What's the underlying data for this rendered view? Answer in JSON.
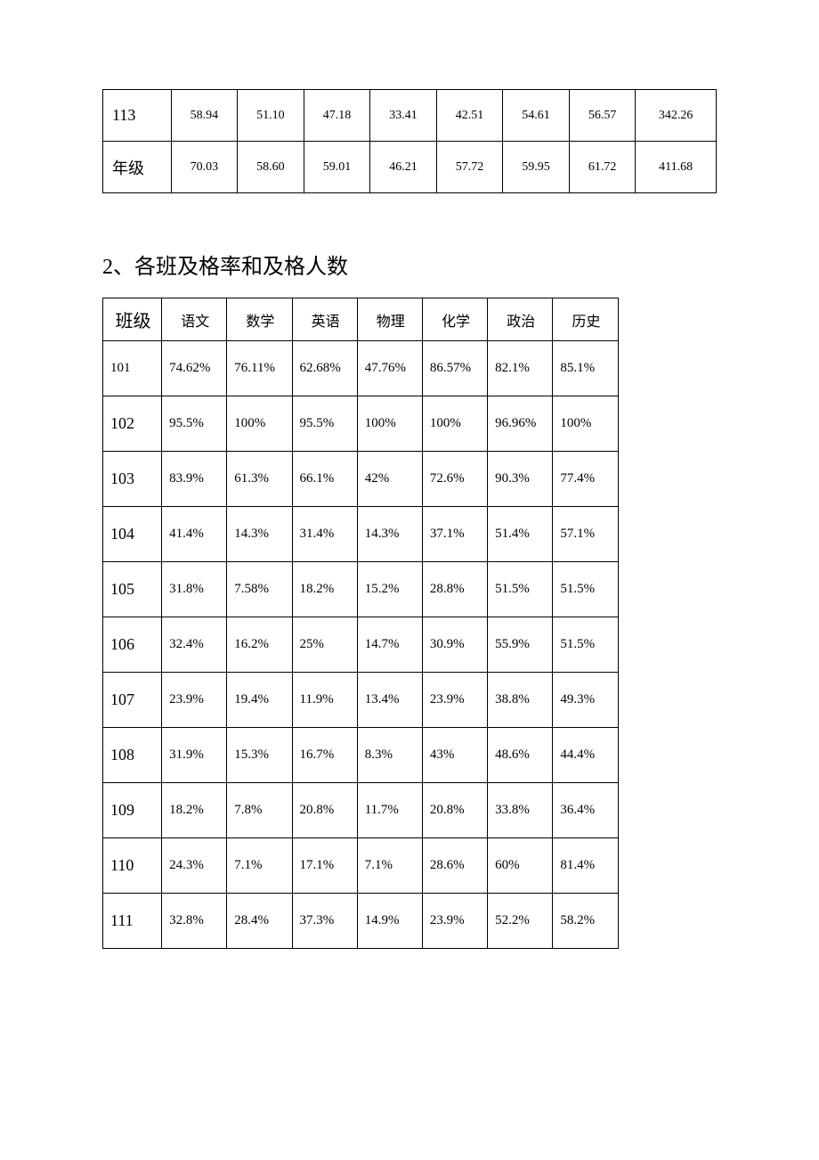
{
  "table1": {
    "rows": [
      {
        "label": "113",
        "cells": [
          "58.94",
          "51.10",
          "47.18",
          "33.41",
          "42.51",
          "54.61",
          "56.57",
          "342.26"
        ]
      },
      {
        "label": "年级",
        "cells": [
          "70.03",
          "58.60",
          "59.01",
          "46.21",
          "57.72",
          "59.95",
          "61.72",
          "411.68"
        ]
      }
    ]
  },
  "heading": "2、各班及格率和及格人数",
  "table2": {
    "headers": [
      "班级",
      "语文",
      "数学",
      "英语",
      "物理",
      "化学",
      "政治",
      "历史"
    ],
    "rows": [
      {
        "label": "101",
        "cells": [
          "74.62%",
          "76.11%",
          "62.68%",
          "47.76%",
          "86.57%",
          "82.1%",
          "85.1%"
        ]
      },
      {
        "label": "102",
        "cells": [
          "95.5%",
          "100%",
          "95.5%",
          "100%",
          "100%",
          "96.96%",
          "100%"
        ]
      },
      {
        "label": "103",
        "cells": [
          "83.9%",
          "61.3%",
          "66.1%",
          "42%",
          "72.6%",
          "90.3%",
          "77.4%"
        ]
      },
      {
        "label": "104",
        "cells": [
          "41.4%",
          "14.3%",
          "31.4%",
          "14.3%",
          "37.1%",
          "51.4%",
          "57.1%"
        ]
      },
      {
        "label": "105",
        "cells": [
          "31.8%",
          "7.58%",
          "18.2%",
          "15.2%",
          "28.8%",
          "51.5%",
          "51.5%"
        ]
      },
      {
        "label": "106",
        "cells": [
          "32.4%",
          "16.2%",
          "25%",
          "14.7%",
          "30.9%",
          "55.9%",
          "51.5%"
        ]
      },
      {
        "label": "107",
        "cells": [
          "23.9%",
          "19.4%",
          "11.9%",
          "13.4%",
          "23.9%",
          "38.8%",
          "49.3%"
        ]
      },
      {
        "label": "108",
        "cells": [
          "31.9%",
          "15.3%",
          "16.7%",
          "8.3%",
          "43%",
          "48.6%",
          "44.4%"
        ]
      },
      {
        "label": "109",
        "cells": [
          "18.2%",
          "7.8%",
          "20.8%",
          "11.7%",
          "20.8%",
          "33.8%",
          "36.4%"
        ]
      },
      {
        "label": "110",
        "cells": [
          "24.3%",
          "7.1%",
          "17.1%",
          "7.1%",
          "28.6%",
          "60%",
          "81.4%"
        ]
      },
      {
        "label": "111",
        "cells": [
          "32.8%",
          "28.4%",
          "37.3%",
          "14.9%",
          "23.9%",
          "52.2%",
          "58.2%"
        ]
      }
    ]
  }
}
